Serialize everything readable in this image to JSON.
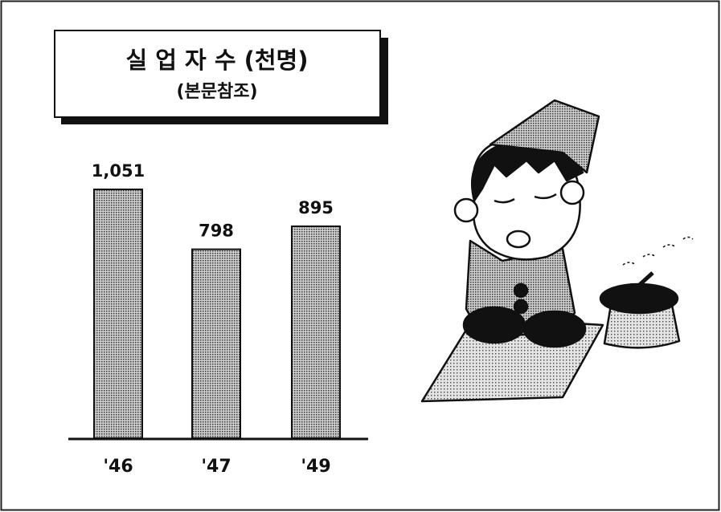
{
  "chart_data": {
    "type": "bar",
    "title": "실 업 자 수 (천명)",
    "subtitle": "(본문참조)",
    "categories": [
      "'46",
      "'47",
      "'49"
    ],
    "values": [
      1051,
      798,
      895
    ],
    "value_labels": [
      "1,051",
      "798",
      "895"
    ],
    "color": "#9a9a9a"
  }
}
